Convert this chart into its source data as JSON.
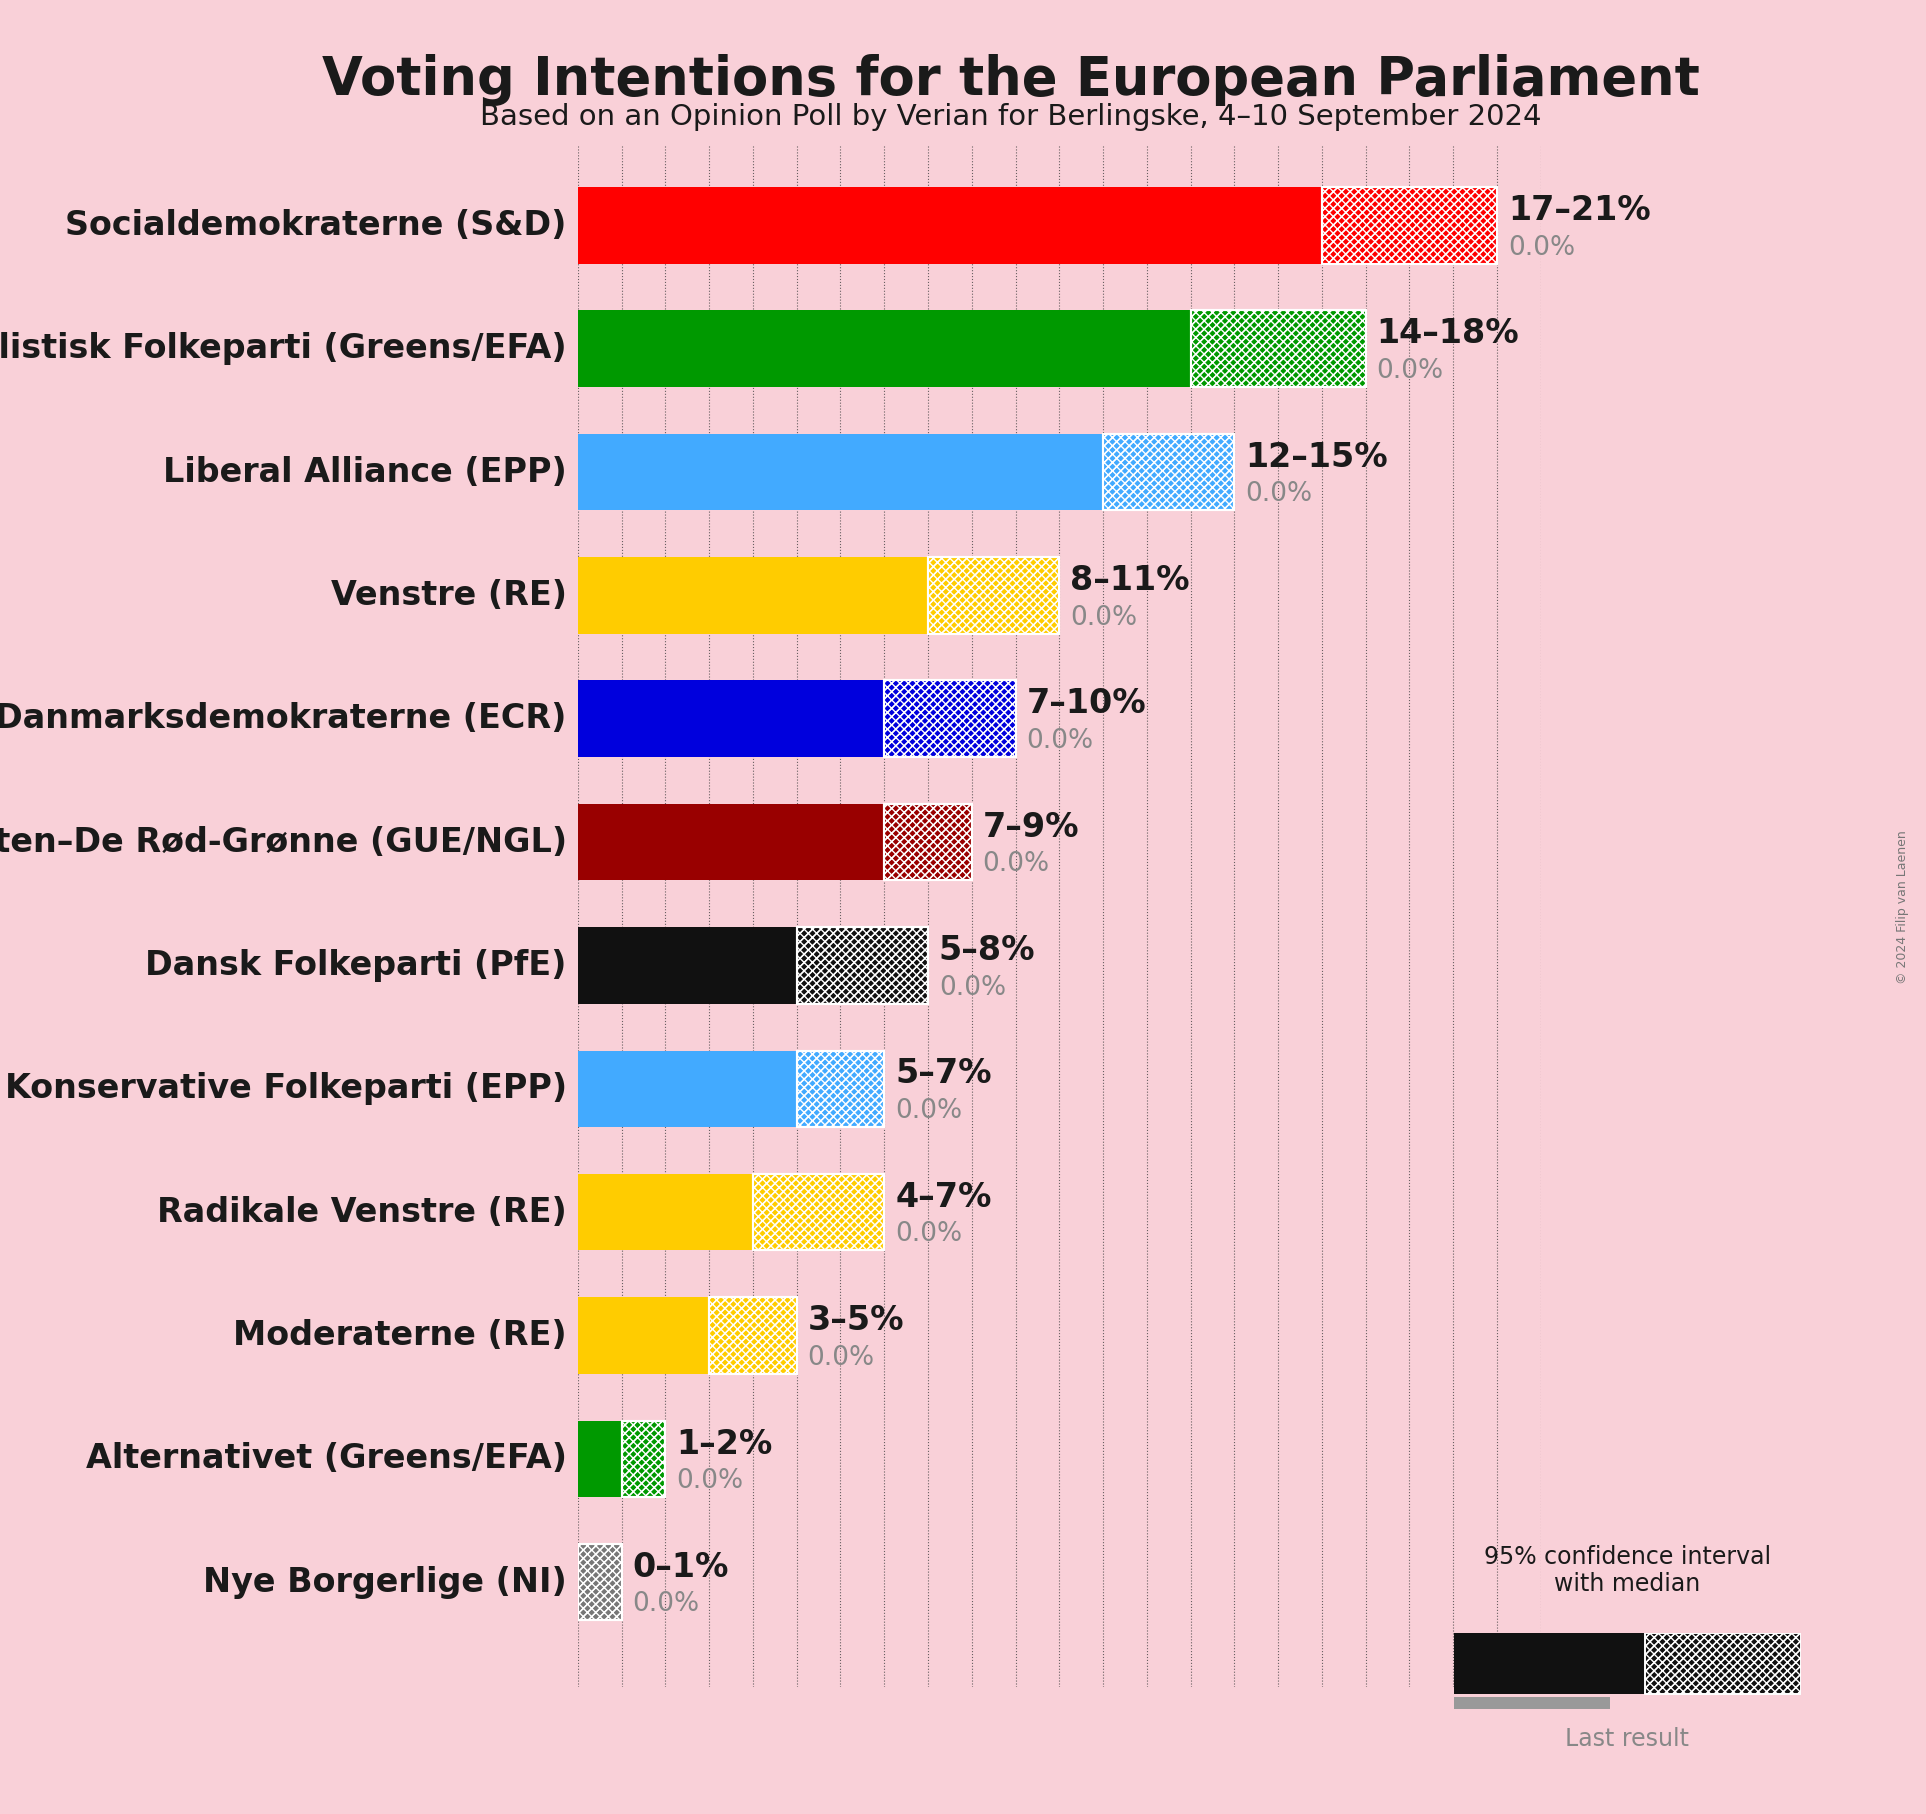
{
  "title": "Voting Intentions for the European Parliament",
  "subtitle": "Based on an Opinion Poll by Verian for Berlingske, 4–10 September 2024",
  "copyright": "© 2024 Filip van Laenen",
  "background_color": "#f9d0d8",
  "parties": [
    {
      "name": "Socialdemokraterne (S&D)",
      "low": 17,
      "high": 21,
      "last_result": 0.0,
      "color": "#ff0000",
      "label": "17–21%"
    },
    {
      "name": "Socialistisk Folkeparti (Greens/EFA)",
      "low": 14,
      "high": 18,
      "last_result": 0.0,
      "color": "#009900",
      "label": "14–18%"
    },
    {
      "name": "Liberal Alliance (EPP)",
      "low": 12,
      "high": 15,
      "last_result": 0.0,
      "color": "#42aaff",
      "label": "12–15%"
    },
    {
      "name": "Venstre (RE)",
      "low": 8,
      "high": 11,
      "last_result": 0.0,
      "color": "#ffcc00",
      "label": "8–11%"
    },
    {
      "name": "Danmarksdemokraterne (ECR)",
      "low": 7,
      "high": 10,
      "last_result": 0.0,
      "color": "#0000dd",
      "label": "7–10%"
    },
    {
      "name": "Enhedslisten–De Rød-Grønne (GUE/NGL)",
      "low": 7,
      "high": 9,
      "last_result": 0.0,
      "color": "#990000",
      "label": "7–9%"
    },
    {
      "name": "Dansk Folkeparti (PfE)",
      "low": 5,
      "high": 8,
      "last_result": 0.0,
      "color": "#111111",
      "label": "5–8%"
    },
    {
      "name": "Det Konservative Folkeparti (EPP)",
      "low": 5,
      "high": 7,
      "last_result": 0.0,
      "color": "#42aaff",
      "label": "5–7%"
    },
    {
      "name": "Radikale Venstre (RE)",
      "low": 4,
      "high": 7,
      "last_result": 0.0,
      "color": "#ffcc00",
      "label": "4–7%"
    },
    {
      "name": "Moderaterne (RE)",
      "low": 3,
      "high": 5,
      "last_result": 0.0,
      "color": "#ffcc00",
      "label": "3–5%"
    },
    {
      "name": "Alternativet (Greens/EFA)",
      "low": 1,
      "high": 2,
      "last_result": 0.0,
      "color": "#009900",
      "label": "1–2%"
    },
    {
      "name": "Nye Borgerlige (NI)",
      "low": 0,
      "high": 1,
      "last_result": 0.0,
      "color": "#777777",
      "label": "0–1%"
    }
  ],
  "xlim_max": 22,
  "label_fontsize": 24,
  "title_fontsize": 38,
  "subtitle_fontsize": 21,
  "value_fontsize": 24,
  "last_result_color": "#999999",
  "bar_height": 0.62
}
